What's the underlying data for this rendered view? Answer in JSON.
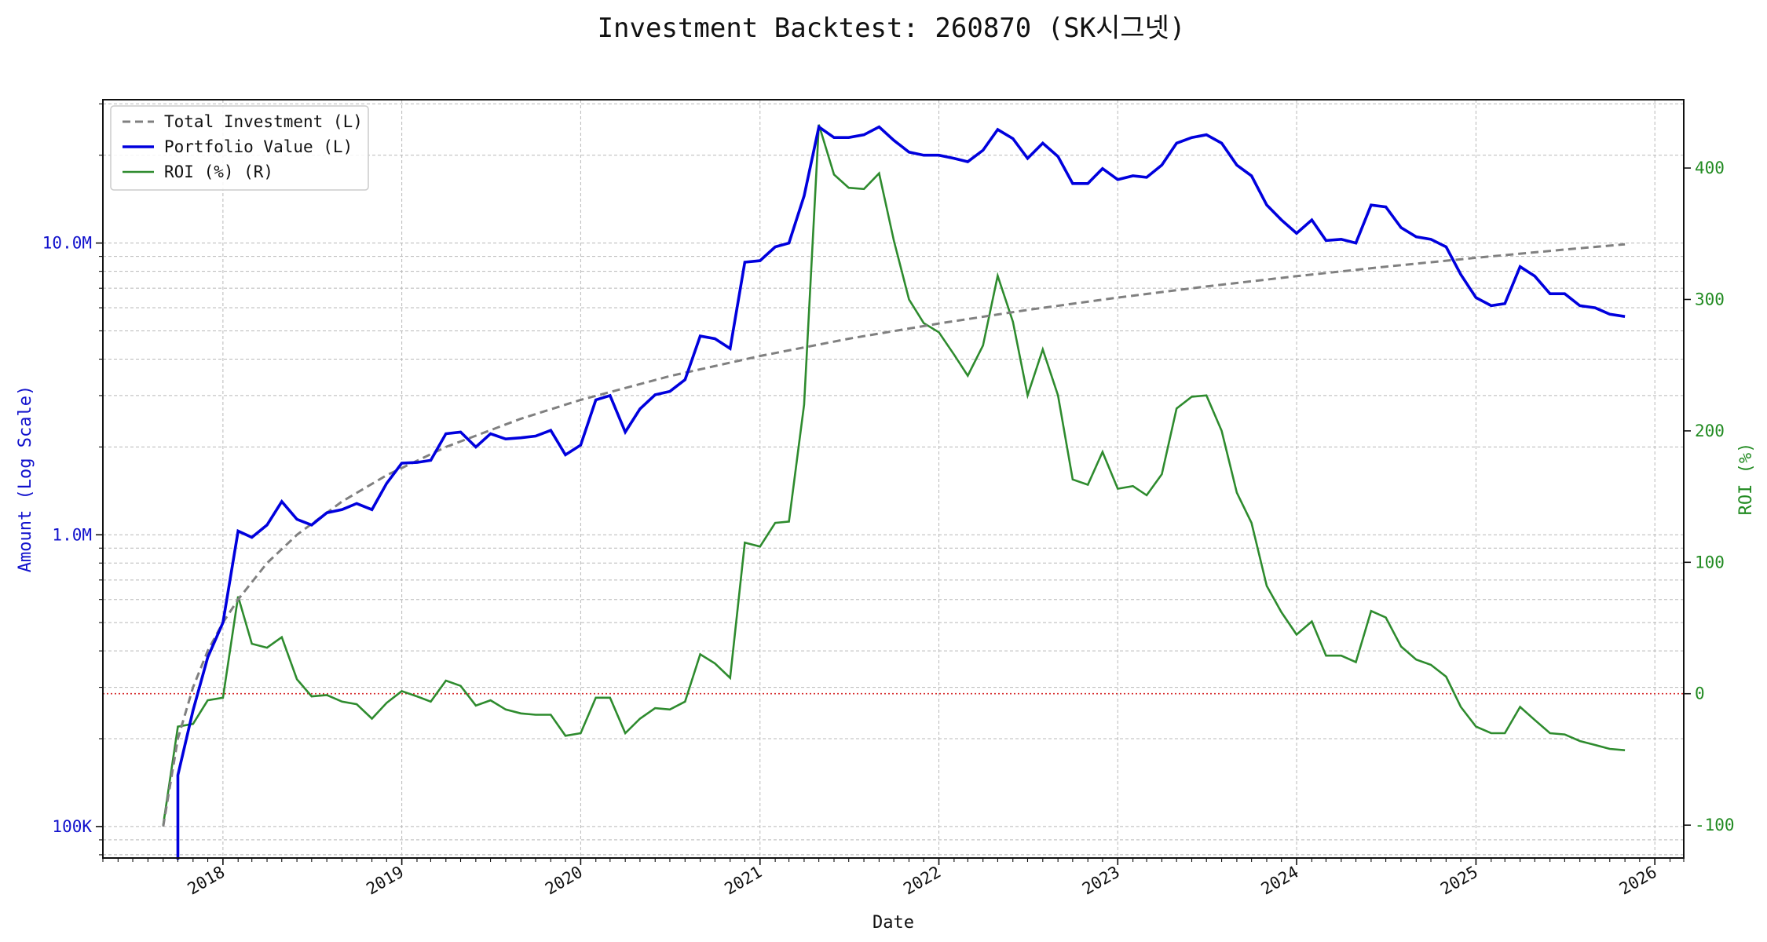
{
  "chart_data": {
    "type": "line",
    "title": "Investment Backtest: 260870 (SK시그넷)",
    "xlabel": "Date",
    "ylabel_left": "Amount (Log Scale)",
    "ylabel_right": "ROI (%)",
    "left_scale": "log",
    "left_ylim": [
      78000,
      31000000
    ],
    "right_ylim": [
      -125,
      452
    ],
    "x_range": [
      "2017-05-01",
      "2026-03-01"
    ],
    "x_ticks": [
      "2018",
      "2019",
      "2020",
      "2021",
      "2022",
      "2023",
      "2024",
      "2025",
      "2026"
    ],
    "left_ticks": [
      {
        "value": 100000,
        "label": "100K"
      },
      {
        "value": 1000000,
        "label": "1.0M"
      },
      {
        "value": 10000000,
        "label": "10.0M"
      }
    ],
    "right_ticks": [
      -100,
      0,
      100,
      200,
      300,
      400
    ],
    "grid": true,
    "legend_position": "upper-left",
    "zero_line": {
      "value": 0,
      "axis": "right",
      "color": "#d62728"
    },
    "colors": {
      "left_axis": "#1111cc",
      "right_axis": "#228B22",
      "investment": "#808080",
      "portfolio": "#0000dd",
      "roi": "#2e8b2e"
    },
    "series": [
      {
        "name": "Total Investment (L)",
        "axis": "left",
        "style": "dashed",
        "x": [
          "2017-09-01",
          "2017-10-01",
          "2017-11-01",
          "2017-12-01",
          "2018-01-01",
          "2018-02-01",
          "2018-04-01",
          "2018-06-01",
          "2018-09-01",
          "2018-12-01",
          "2019-04-01",
          "2019-09-01",
          "2020-01-01",
          "2020-07-01",
          "2021-01-01",
          "2021-07-01",
          "2022-01-01",
          "2022-07-01",
          "2023-01-01",
          "2023-07-01",
          "2024-01-01",
          "2024-07-01",
          "2025-01-01",
          "2025-07-01",
          "2025-11-01"
        ],
        "y": [
          100000,
          200000,
          300000,
          400000,
          500000,
          600000,
          800000,
          1000000,
          1300000,
          1600000,
          2000000,
          2500000,
          2900000,
          3500000,
          4100000,
          4700000,
          5300000,
          5900000,
          6500000,
          7100000,
          7700000,
          8300000,
          8900000,
          9500000,
          9900000
        ]
      },
      {
        "name": "Portfolio Value (L)",
        "axis": "left",
        "style": "solid",
        "x": [
          "2017-10-01",
          "2017-11-01",
          "2017-12-01",
          "2018-01-01",
          "2018-02-01",
          "2018-03-01",
          "2018-04-01",
          "2018-05-01",
          "2018-06-01",
          "2018-07-01",
          "2018-08-01",
          "2018-09-01",
          "2018-10-01",
          "2018-11-01",
          "2018-12-01",
          "2019-01-01",
          "2019-02-01",
          "2019-03-01",
          "2019-04-01",
          "2019-05-01",
          "2019-06-01",
          "2019-07-01",
          "2019-08-01",
          "2019-09-01",
          "2019-10-01",
          "2019-11-01",
          "2019-12-01",
          "2020-01-01",
          "2020-02-01",
          "2020-03-01",
          "2020-04-01",
          "2020-05-01",
          "2020-06-01",
          "2020-07-01",
          "2020-08-01",
          "2020-09-01",
          "2020-10-01",
          "2020-11-01",
          "2020-12-01",
          "2021-01-01",
          "2021-02-01",
          "2021-03-01",
          "2021-04-01",
          "2021-05-01",
          "2021-06-01",
          "2021-07-01",
          "2021-08-01",
          "2021-09-01",
          "2021-10-01",
          "2021-11-01",
          "2021-12-01",
          "2022-01-01",
          "2022-02-01",
          "2022-03-01",
          "2022-04-01",
          "2022-05-01",
          "2022-06-01",
          "2022-07-01",
          "2022-08-01",
          "2022-09-01",
          "2022-10-01",
          "2022-11-01",
          "2022-12-01",
          "2023-01-01",
          "2023-02-01",
          "2023-03-01",
          "2023-04-01",
          "2023-05-01",
          "2023-06-01",
          "2023-07-01",
          "2023-08-01",
          "2023-09-01",
          "2023-10-01",
          "2023-11-01",
          "2023-12-01",
          "2024-01-01",
          "2024-02-01",
          "2024-03-01",
          "2024-04-01",
          "2024-05-01",
          "2024-06-01",
          "2024-07-01",
          "2024-08-01",
          "2024-09-01",
          "2024-10-01",
          "2024-11-01",
          "2024-12-01",
          "2025-01-01",
          "2025-02-01",
          "2025-03-01",
          "2025-04-01",
          "2025-05-01",
          "2025-06-01",
          "2025-07-01",
          "2025-08-01",
          "2025-09-01",
          "2025-10-01",
          "2025-11-01"
        ],
        "y": [
          150000,
          250000,
          380000,
          500000,
          1030000,
          980000,
          1080000,
          1300000,
          1130000,
          1080000,
          1190000,
          1220000,
          1280000,
          1220000,
          1500000,
          1760000,
          1770000,
          1800000,
          2220000,
          2250000,
          2000000,
          2220000,
          2130000,
          2150000,
          2180000,
          2280000,
          1880000,
          2030000,
          2900000,
          3000000,
          2250000,
          2700000,
          3020000,
          3100000,
          3400000,
          4800000,
          4700000,
          4350000,
          8600000,
          8700000,
          9700000,
          10000000,
          14500000,
          25000000,
          23000000,
          23000000,
          23500000,
          25000000,
          22500000,
          20500000,
          20000000,
          20000000,
          19500000,
          19000000,
          20800000,
          24500000,
          22800000,
          19500000,
          22000000,
          19800000,
          16000000,
          16000000,
          18000000,
          16500000,
          17000000,
          16800000,
          18500000,
          22000000,
          23000000,
          23500000,
          22000000,
          18500000,
          17000000,
          13500000,
          12000000,
          10800000,
          12000000,
          10200000,
          10300000,
          10000000,
          13500000,
          13300000,
          11300000,
          10500000,
          10300000,
          9700000,
          7800000,
          6500000,
          6100000,
          6200000,
          8300000,
          7700000,
          6700000,
          6700000,
          6100000,
          6000000,
          5700000,
          5600000
        ]
      },
      {
        "name": "ROI (%) (R)",
        "axis": "right",
        "style": "solid",
        "x": [
          "2017-09-01",
          "2017-10-01",
          "2017-11-01",
          "2017-12-01",
          "2018-01-01",
          "2018-02-01",
          "2018-03-01",
          "2018-04-01",
          "2018-05-01",
          "2018-06-01",
          "2018-07-01",
          "2018-08-01",
          "2018-09-01",
          "2018-10-01",
          "2018-11-01",
          "2018-12-01",
          "2019-01-01",
          "2019-02-01",
          "2019-03-01",
          "2019-04-01",
          "2019-05-01",
          "2019-06-01",
          "2019-07-01",
          "2019-08-01",
          "2019-09-01",
          "2019-10-01",
          "2019-11-01",
          "2019-12-01",
          "2020-01-01",
          "2020-02-01",
          "2020-03-01",
          "2020-04-01",
          "2020-05-01",
          "2020-06-01",
          "2020-07-01",
          "2020-08-01",
          "2020-09-01",
          "2020-10-01",
          "2020-11-01",
          "2020-12-01",
          "2021-01-01",
          "2021-02-01",
          "2021-03-01",
          "2021-04-01",
          "2021-05-01",
          "2021-06-01",
          "2021-07-01",
          "2021-08-01",
          "2021-09-01",
          "2021-10-01",
          "2021-11-01",
          "2021-12-01",
          "2022-01-01",
          "2022-02-01",
          "2022-03-01",
          "2022-04-01",
          "2022-05-01",
          "2022-06-01",
          "2022-07-01",
          "2022-08-01",
          "2022-09-01",
          "2022-10-01",
          "2022-11-01",
          "2022-12-01",
          "2023-01-01",
          "2023-02-01",
          "2023-03-01",
          "2023-04-01",
          "2023-05-01",
          "2023-06-01",
          "2023-07-01",
          "2023-08-01",
          "2023-09-01",
          "2023-10-01",
          "2023-11-01",
          "2023-12-01",
          "2024-01-01",
          "2024-02-01",
          "2024-03-01",
          "2024-04-01",
          "2024-05-01",
          "2024-06-01",
          "2024-07-01",
          "2024-08-01",
          "2024-09-01",
          "2024-10-01",
          "2024-11-01",
          "2024-12-01",
          "2025-01-01",
          "2025-02-01",
          "2025-03-01",
          "2025-04-01",
          "2025-05-01",
          "2025-06-01",
          "2025-07-01",
          "2025-08-01",
          "2025-09-01",
          "2025-10-01",
          "2025-11-01"
        ],
        "y": [
          -100,
          -25,
          -23,
          -5,
          -3,
          74,
          38,
          35,
          43,
          11,
          -2,
          -1,
          -6,
          -8,
          -19,
          -7,
          2,
          -2,
          -6,
          10,
          6,
          -9,
          -5,
          -12,
          -15,
          -16,
          -16,
          -32,
          -30,
          -3,
          -3,
          -30,
          -19,
          -11,
          -12,
          -6,
          30,
          23,
          12,
          115,
          112,
          130,
          131,
          220,
          433,
          395,
          385,
          384,
          396,
          345,
          300,
          282,
          275,
          258,
          242,
          265,
          318,
          283,
          227,
          262,
          227,
          163,
          159,
          184,
          156,
          158,
          151,
          167,
          217,
          226,
          227,
          200,
          153,
          130,
          82,
          62,
          45,
          55,
          29,
          29,
          24,
          63,
          58,
          36,
          26,
          22,
          13,
          -10,
          -25,
          -30,
          -30,
          -10,
          -20,
          -30,
          -31,
          -36,
          -39,
          -42,
          -43
        ]
      }
    ]
  }
}
